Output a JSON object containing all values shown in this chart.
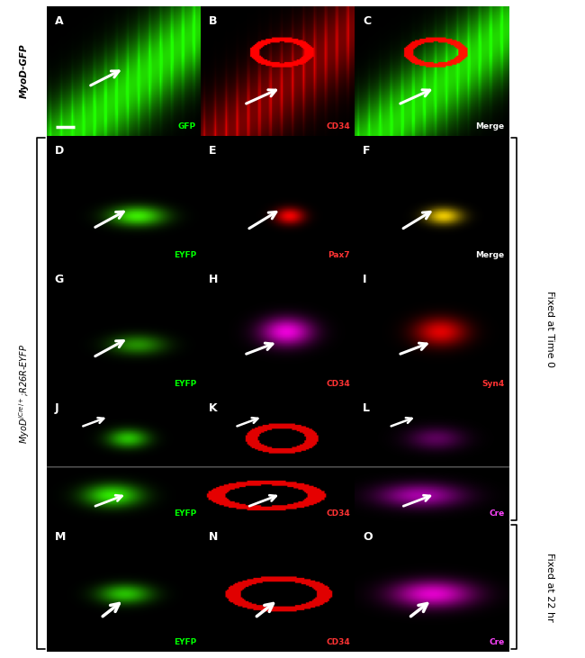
{
  "panels": [
    {
      "label": "A",
      "row": 0,
      "col": 0,
      "type": "muscle_fiber_green",
      "channel": "GFP"
    },
    {
      "label": "B",
      "row": 0,
      "col": 1,
      "type": "muscle_fiber_red",
      "channel": "CD34"
    },
    {
      "label": "C",
      "row": 0,
      "col": 2,
      "type": "muscle_fiber_merge",
      "channel": "Merge"
    },
    {
      "label": "D",
      "row": 1,
      "col": 0,
      "type": "blob_green",
      "channel": "EYFP"
    },
    {
      "label": "E",
      "row": 1,
      "col": 1,
      "type": "blob_red_small",
      "channel": "Pax7"
    },
    {
      "label": "F",
      "row": 1,
      "col": 2,
      "type": "blob_yellow",
      "channel": "Merge"
    },
    {
      "label": "G",
      "row": 2,
      "col": 0,
      "type": "blob_green_dim",
      "channel": "EYFP"
    },
    {
      "label": "H",
      "row": 2,
      "col": 1,
      "type": "blob_magenta",
      "channel": "CD34"
    },
    {
      "label": "I",
      "row": 2,
      "col": 2,
      "type": "blob_red",
      "channel": "Syn4"
    },
    {
      "label": "J",
      "row": 3,
      "col": 0,
      "type": "blob_green_inset",
      "channel": "EYFP"
    },
    {
      "label": "K",
      "row": 3,
      "col": 1,
      "type": "ring_red_inset",
      "channel": "CD34"
    },
    {
      "label": "L",
      "row": 3,
      "col": 2,
      "type": "blob_magenta_dim_inset",
      "channel": "Cre"
    },
    {
      "label": "M",
      "row": 4,
      "col": 0,
      "type": "blob_green_small",
      "channel": "EYFP"
    },
    {
      "label": "N",
      "row": 4,
      "col": 1,
      "type": "ring_red",
      "channel": "CD34"
    },
    {
      "label": "O",
      "row": 4,
      "col": 2,
      "type": "blob_magenta_bright",
      "channel": "Cre"
    }
  ],
  "left_label_top": "MyoD-GFP",
  "left_label_bottom": "MyoDʲᶜʳᵉ⁺/+;R26R-EYFP",
  "right_label_time0": "Fixed at Time 0",
  "right_label_22hr": "Fixed at 22 hr",
  "n_rows": 5,
  "n_cols": 3,
  "bg_color": "#ffffff",
  "ch_colors": {
    "GFP": "#00ff00",
    "CD34": "#ff3333",
    "Merge": "#ffffff",
    "EYFP": "#00ff00",
    "Pax7": "#ff3333",
    "Syn4": "#ff3333",
    "Cre": "#ff44ff"
  }
}
